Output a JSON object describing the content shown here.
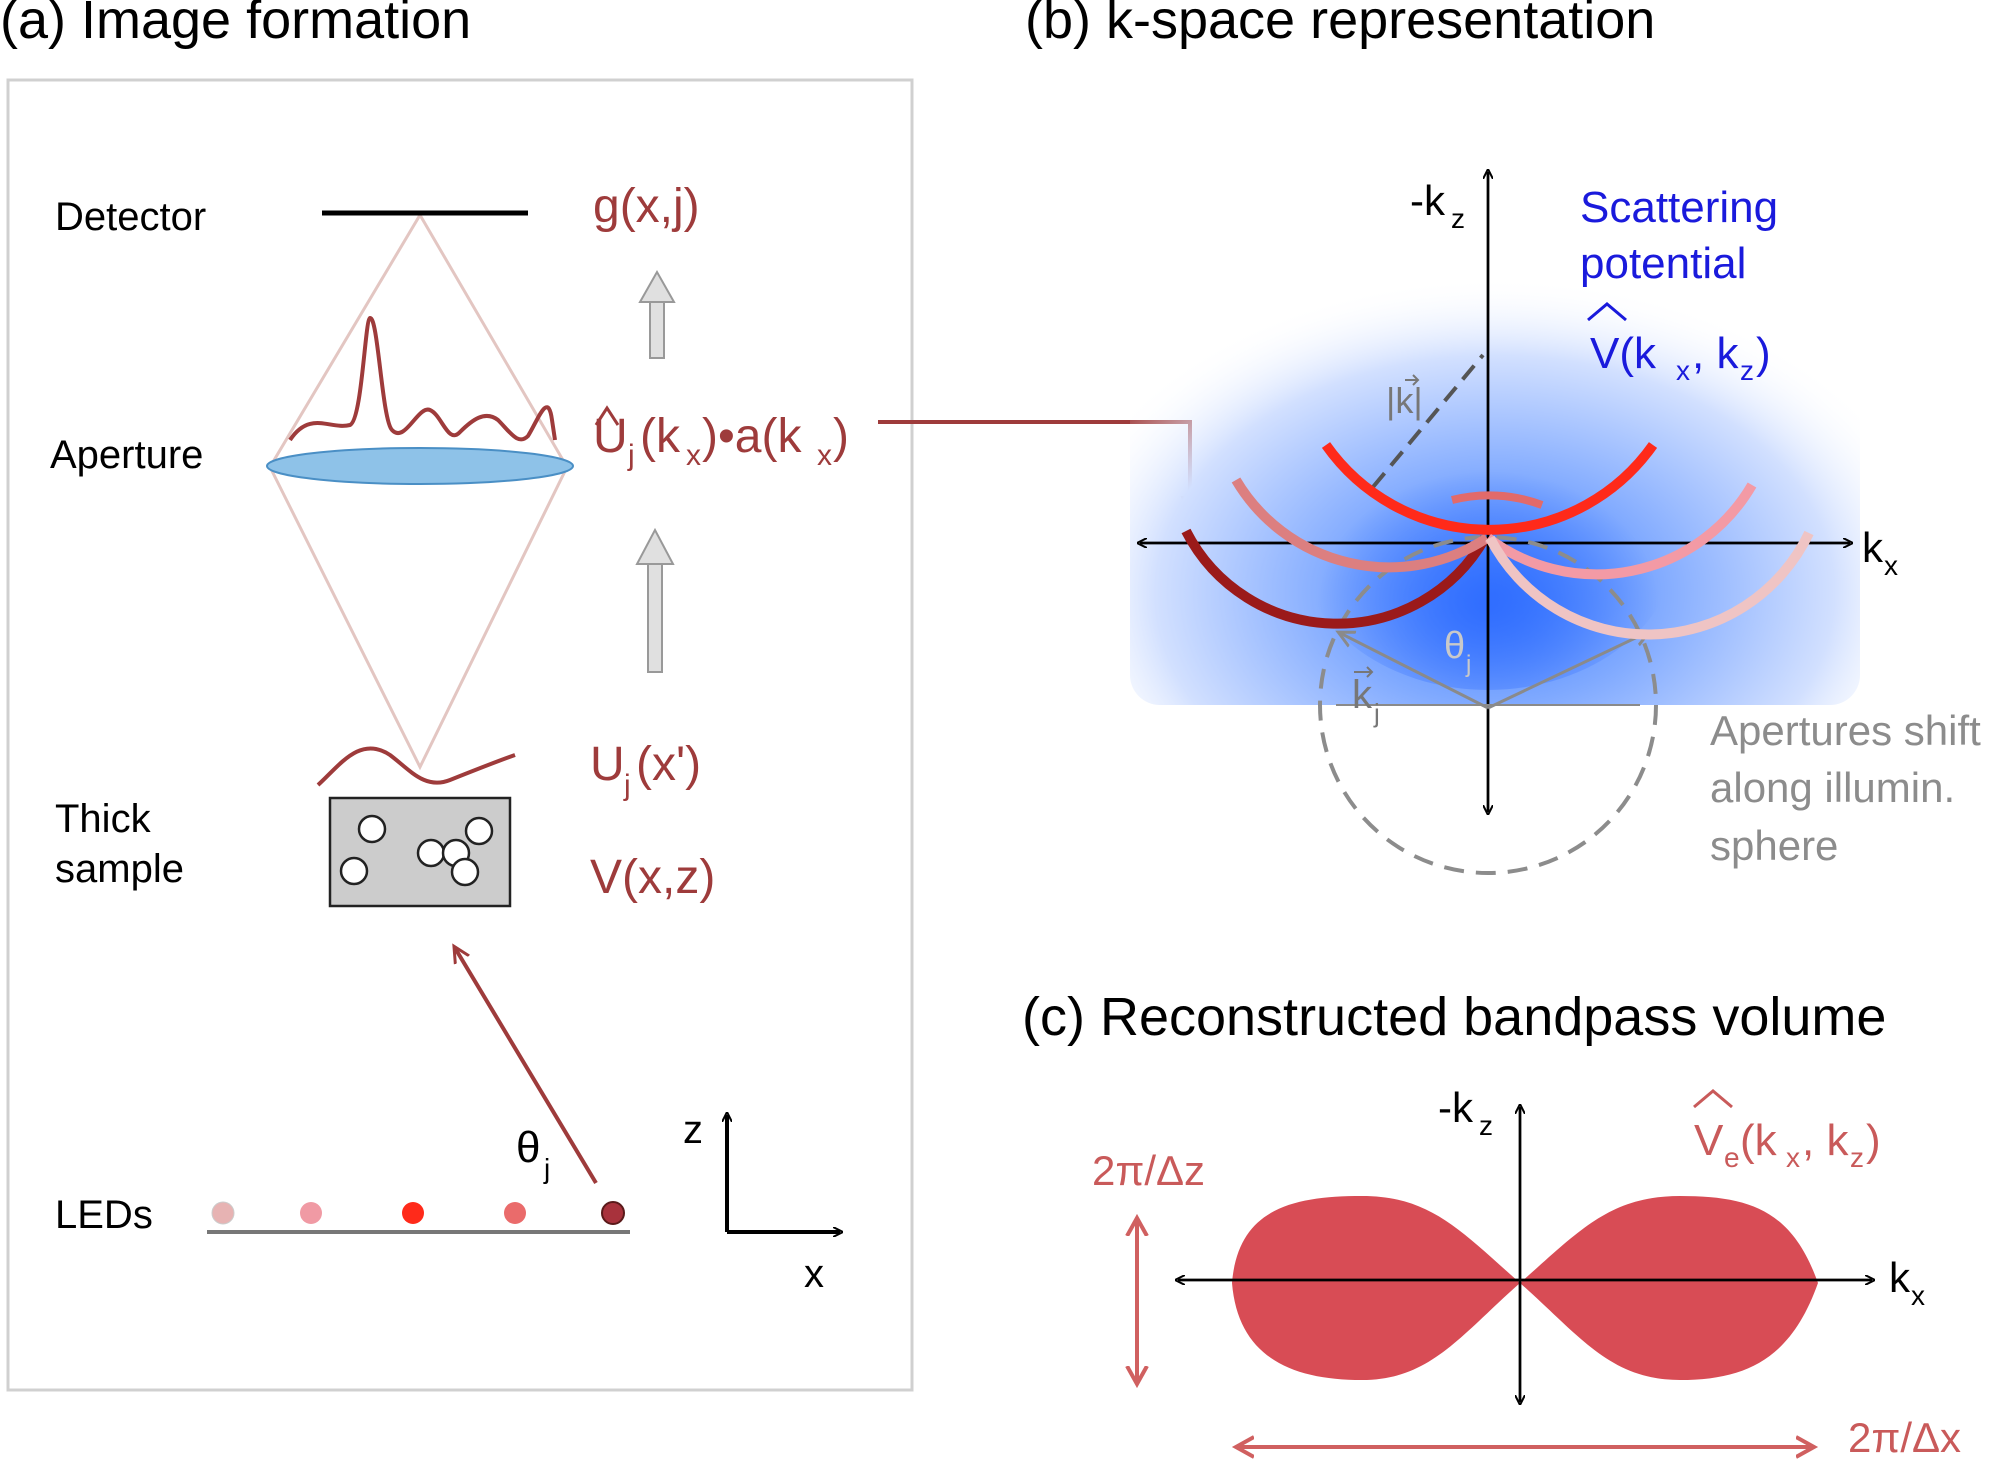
{
  "panel_a": {
    "title": "(a) Image formation",
    "labels": {
      "detector": "Detector",
      "aperture": "Aperture",
      "thick": "Thick",
      "sample": "sample",
      "leds": "LEDs"
    },
    "math": {
      "g": "g(x,j)",
      "U": "U",
      "j": "j",
      "kx_open": "(k",
      "x": "x",
      "dot_a": ")•a(k",
      "close": ")",
      "Ux": "(x')",
      "V": "V(x,z)",
      "theta": "θ",
      "z_axis": "z",
      "x_axis": "x"
    }
  },
  "panel_b": {
    "title": "(b) k-space representation",
    "neg_kz": "-k",
    "z": "z",
    "k": "k",
    "x": "x",
    "scattering_1": "Scattering",
    "scattering_2": "potential",
    "V_expr_1": "V(k",
    "V_expr_2": ", k",
    "V_expr_3": ")",
    "k_mag": "|k|",
    "theta": "θ",
    "j": "j",
    "note_1": "Apertures shift",
    "note_2": "along illumin.",
    "note_3": "sphere"
  },
  "panel_c": {
    "title": "(c) Reconstructed bandpass volume",
    "neg_kz": "-k",
    "z": "z",
    "k": "k",
    "x": "x",
    "Ve_1": "V",
    "e": "e",
    "Ve_2": "(k",
    "Ve_3": ", k",
    "Ve_4": ")",
    "dz": "2π/Δz",
    "dx": "2π/Δx"
  },
  "colors": {
    "dark_red": "#9e3b3b",
    "blue_text": "#1a1adc",
    "lobe_fill": "#d84c55",
    "gray_text": "#8c8c8c"
  }
}
